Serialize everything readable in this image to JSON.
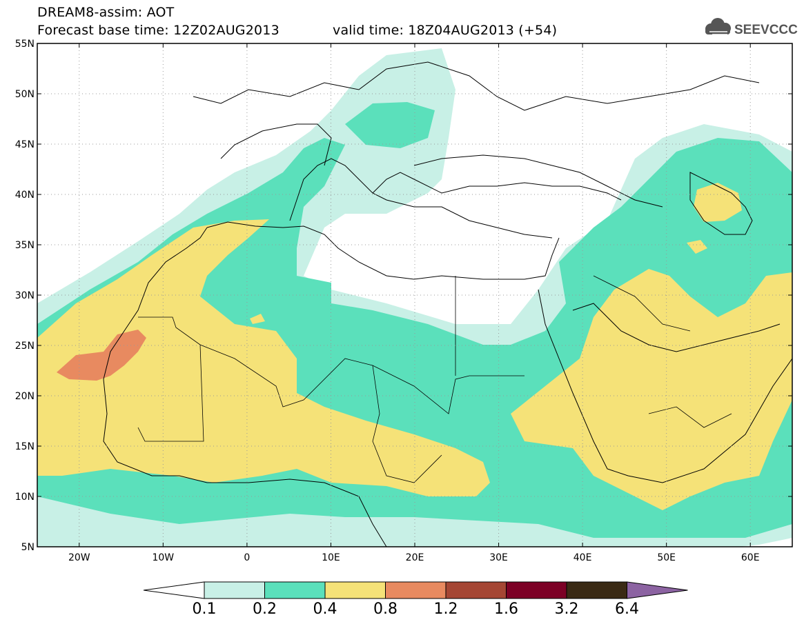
{
  "header": {
    "line1": "DREAM8-assim: AOT",
    "line2": "Forecast base time: 12Z02AUG2013",
    "line3": "valid time: 18Z04AUG2013 (+54)",
    "logo_text": "SEEVCCC"
  },
  "map": {
    "lon_range": [
      -25,
      65
    ],
    "lat_range": [
      5,
      55
    ],
    "lat_ticks": [
      "5N",
      "10N",
      "15N",
      "20N",
      "25N",
      "30N",
      "35N",
      "40N",
      "45N",
      "50N",
      "55N"
    ],
    "lon_ticks": [
      "20W",
      "10W",
      "0",
      "10E",
      "20E",
      "30E",
      "40E",
      "50E",
      "60E"
    ]
  },
  "colorbar": {
    "labels": [
      "0.1",
      "0.2",
      "0.4",
      "0.8",
      "1.2",
      "1.6",
      "3.2",
      "6.4"
    ],
    "colors": [
      "#c8f0e6",
      "#5be0bb",
      "#f5e278",
      "#e88a60",
      "#a54634",
      "#7c0025",
      "#3a2a14",
      "#8c63a2"
    ]
  },
  "colors": {
    "land_outline": "#000000",
    "background": "#ffffff"
  }
}
